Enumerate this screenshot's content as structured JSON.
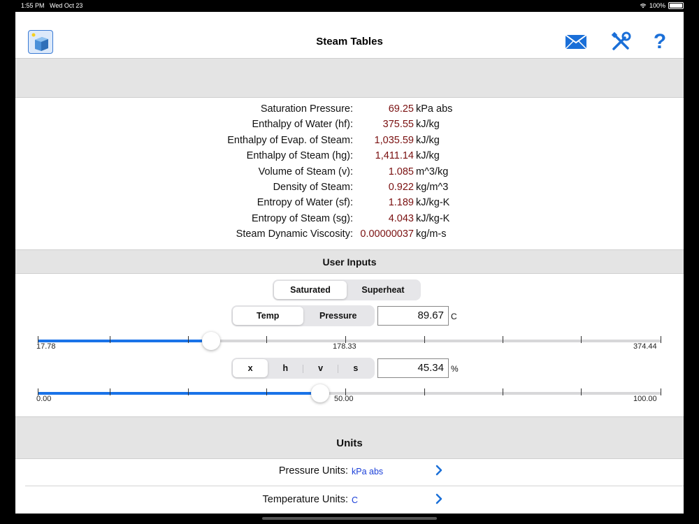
{
  "status_bar": {
    "time": "1:55 PM",
    "date": "Wed Oct 23",
    "battery": "100%"
  },
  "header": {
    "title": "Steam Tables",
    "icons": [
      "app-icon",
      "mail-icon",
      "tools-icon",
      "help-icon"
    ],
    "help_label": "?"
  },
  "results": [
    {
      "label": "Saturation Pressure:",
      "value": "69.25",
      "unit": "kPa abs"
    },
    {
      "label": "Enthalpy of Water (hf):",
      "value": "375.55",
      "unit": "kJ/kg"
    },
    {
      "label": "Enthalpy of Evap. of Steam:",
      "value": "1,035.59",
      "unit": "kJ/kg"
    },
    {
      "label": "Enthalpy of Steam (hg):",
      "value": "1,411.14",
      "unit": "kJ/kg"
    },
    {
      "label": "Volume of Steam (v):",
      "value": "1.085",
      "unit": "m^3/kg"
    },
    {
      "label": "Density of Steam:",
      "value": "0.922",
      "unit": "kg/m^3"
    },
    {
      "label": "Entropy of Water (sf):",
      "value": "1.189",
      "unit": "kJ/kg-K"
    },
    {
      "label": "Entropy of Steam (sg):",
      "value": "4.043",
      "unit": "kJ/kg-K"
    },
    {
      "label": "Steam Dynamic Viscosity:",
      "value": "0.00000037",
      "unit": "kg/m-s"
    }
  ],
  "user_inputs": {
    "title": "User Inputs",
    "mode_segment": {
      "options": [
        "Saturated",
        "Superheat"
      ],
      "selected": "Saturated"
    },
    "basis_segment": {
      "options": [
        "Temp",
        "Pressure"
      ],
      "selected": "Temp"
    },
    "temp_value": "89.67",
    "temp_unit": "C",
    "temp_slider": {
      "min_label": "17.78",
      "mid_label": "178.33",
      "max_label": "374.44",
      "fraction": 0.278
    },
    "property_segment": {
      "options": [
        "x",
        "h",
        "v",
        "s"
      ],
      "selected": "x"
    },
    "quality_value": "45.34",
    "quality_unit": "%",
    "quality_slider": {
      "min_label": "0.00",
      "mid_label": "50.00",
      "max_label": "100.00",
      "fraction": 0.4534
    }
  },
  "units": {
    "title": "Units",
    "rows": [
      {
        "label": "Pressure Units:",
        "value": "kPa abs"
      },
      {
        "label": "Temperature Units:",
        "value": "C"
      }
    ]
  },
  "colors": {
    "accent": "#1a73e8",
    "result_value": "#7a1010",
    "unit_value": "#1a3fd8"
  }
}
